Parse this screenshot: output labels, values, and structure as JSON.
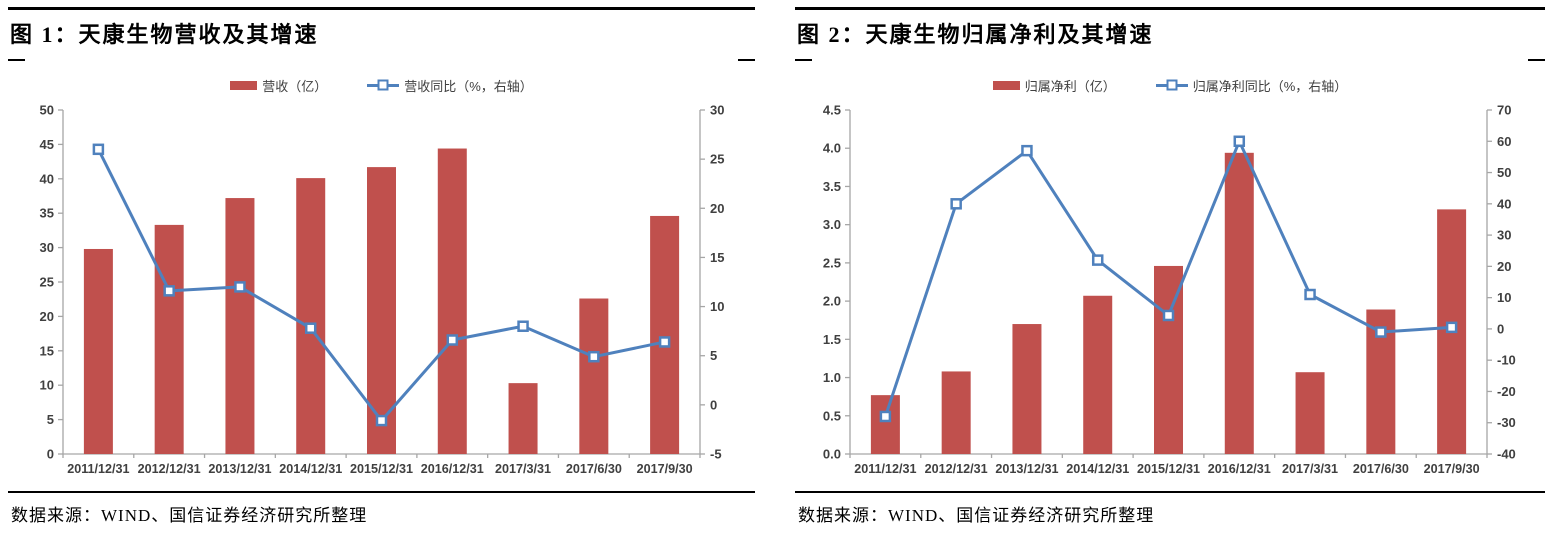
{
  "source_note": "数据来源：WIND、国信证券经济研究所整理",
  "colors": {
    "bar_fill": "#C0504D",
    "line_stroke": "#4F81BD",
    "marker_fill": "#FFFFFF",
    "axis_line": "#A6A6A6",
    "tick_label": "#404040",
    "rule": "#000000"
  },
  "chart_data": [
    {
      "type": "bar+line",
      "title": "图 1：天康生物营收及其增速",
      "categories": [
        "2011/12/31",
        "2012/12/31",
        "2013/12/31",
        "2014/12/31",
        "2015/12/31",
        "2016/12/31",
        "2017/3/31",
        "2017/6/30",
        "2017/9/30"
      ],
      "series": [
        {
          "name": "营收（亿）",
          "type": "bar",
          "axis": "left",
          "values": [
            29.8,
            33.3,
            37.2,
            40.1,
            41.7,
            44.4,
            10.3,
            22.6,
            34.6
          ]
        },
        {
          "name": "营收同比（%，右轴）",
          "type": "line",
          "axis": "right",
          "values": [
            26.0,
            11.6,
            12.0,
            7.8,
            -1.6,
            6.6,
            8.0,
            4.9,
            6.4
          ]
        }
      ],
      "left_axis": {
        "min": 0,
        "max": 50,
        "step": 5,
        "decimals": 0
      },
      "right_axis": {
        "min": -5,
        "max": 30,
        "step": 5,
        "decimals": 0
      },
      "grid": false,
      "legend_position": "top"
    },
    {
      "type": "bar+line",
      "title": "图 2：天康生物归属净利及其增速",
      "categories": [
        "2011/12/31",
        "2012/12/31",
        "2013/12/31",
        "2014/12/31",
        "2015/12/31",
        "2016/12/31",
        "2017/3/31",
        "2017/6/30",
        "2017/9/30"
      ],
      "series": [
        {
          "name": "归属净利（亿）",
          "type": "bar",
          "axis": "left",
          "values": [
            0.77,
            1.08,
            1.7,
            2.07,
            2.46,
            3.94,
            1.07,
            1.89,
            3.2
          ]
        },
        {
          "name": "归属净利同比（%，右轴）",
          "type": "line",
          "axis": "right",
          "values": [
            -28,
            40,
            57,
            22,
            4.3,
            60,
            11,
            -1,
            0.5
          ]
        }
      ],
      "left_axis": {
        "min": 0,
        "max": 4.5,
        "step": 0.5,
        "decimals": 1
      },
      "right_axis": {
        "min": -40,
        "max": 70,
        "step": 10,
        "decimals": 0
      },
      "grid": false,
      "legend_position": "top"
    }
  ]
}
